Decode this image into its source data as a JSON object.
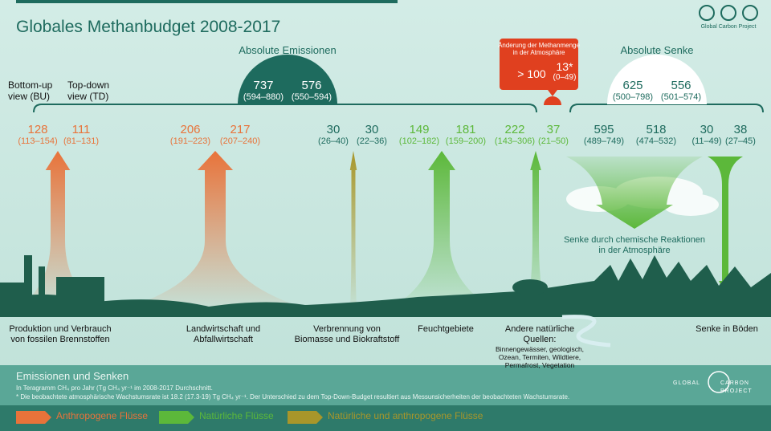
{
  "header": {
    "title": "Globales Methanbudget 2008-2017",
    "credit": "Global Carbon Project"
  },
  "views": {
    "bottom_up": [
      "Bottom-up",
      "view (BU)"
    ],
    "top_down": [
      "Top-down",
      "view  (TD)"
    ]
  },
  "emissions": {
    "label": "Absolute Emissionen",
    "bu": {
      "value": "737",
      "range": "(594–880)"
    },
    "td": {
      "value": "576",
      "range": "(550–594)"
    }
  },
  "atmospheric_change": {
    "label": [
      "Änderung der Methanmenge",
      "in der Atmosphäre"
    ],
    "bu": {
      "value": "> 100"
    },
    "td": {
      "value": "13*",
      "range": "(0–49)"
    }
  },
  "sink": {
    "label": "Absolute Senke",
    "bu": {
      "value": "625",
      "range": "(500–798)"
    },
    "td": {
      "value": "556",
      "range": "(501–574)"
    }
  },
  "flows": [
    {
      "color": "#e8733a",
      "bu": {
        "value": "128",
        "range": "(113–154)"
      },
      "td": {
        "value": "111",
        "range": "(81–131)"
      },
      "label": [
        "Produktion und Verbrauch",
        "von fossilen Brennstoffen"
      ]
    },
    {
      "color": "#e8733a",
      "bu": {
        "value": "206",
        "range": "(191–223)"
      },
      "td": {
        "value": "217",
        "range": "(207–240)"
      },
      "label": [
        "Landwirtschaft und",
        "Abfallwirtschaft"
      ]
    },
    {
      "color": "#a8962a",
      "text_color": "#1e6b5e",
      "bu": {
        "value": "30",
        "range": "(26–40)"
      },
      "td": {
        "value": "30",
        "range": "(22–36)"
      },
      "label": [
        "Verbrennung von",
        "Biomasse und Biokraftstoff"
      ]
    },
    {
      "color": "#5cb83a",
      "bu": {
        "value": "149",
        "range": "(102–182)"
      },
      "td": {
        "value": "181",
        "range": "(159–200)"
      },
      "label": [
        "Feuchtgebiete"
      ]
    },
    {
      "color": "#5cb83a",
      "bu": {
        "value": "222",
        "range": "(143–306)"
      },
      "td": {
        "value": "37",
        "range": "(21–50)"
      },
      "label": [
        "Andere natürliche",
        "Quellen:"
      ],
      "detail": [
        "Binnengewässer, geologisch,",
        "Ozean, Termiten, Wildtiere,",
        "Permafrost, Vegetation"
      ]
    },
    {
      "color": "#5cb83a",
      "text_color": "#1e6b5e",
      "bu": {
        "value": "595",
        "range": "(489–749)"
      },
      "td": {
        "value": "518",
        "range": "(474–532)"
      },
      "label": [
        "Senke durch chemische Reaktionen",
        "in der Atmosphäre"
      ]
    },
    {
      "color": "#5cb83a",
      "text_color": "#1e6b5e",
      "bu": {
        "value": "30",
        "range": "(11–49)"
      },
      "td": {
        "value": "38",
        "range": "(27–45)"
      },
      "label": [
        "Senke in Böden"
      ]
    }
  ],
  "footer": {
    "title": "Emissionen und Senken",
    "notes": [
      "In Teragramm CH₄  pro Jahr (Tg CH₄ yr⁻¹ im  2008-2017 Durchschnitt.",
      "* Die beobachtete atmosphärische Wachstumsrate ist 18.2 (17.3-19) Tg  CH₄ yr⁻¹. Der Unterschied zu dem Top-Down-Budget resultiert aus Messunsicherheiten der beobachteten Wachstumsrate."
    ],
    "logo": [
      "GLOBAL",
      "CARBON",
      "PROJECT"
    ]
  },
  "legend": [
    {
      "label": "Anthropogene Flüsse",
      "color": "#e8733a"
    },
    {
      "label": "Natürliche Flüsse",
      "color": "#5cb83a"
    },
    {
      "label": "Natürliche und anthropogene Flüsse",
      "color": "#a8962a"
    }
  ]
}
